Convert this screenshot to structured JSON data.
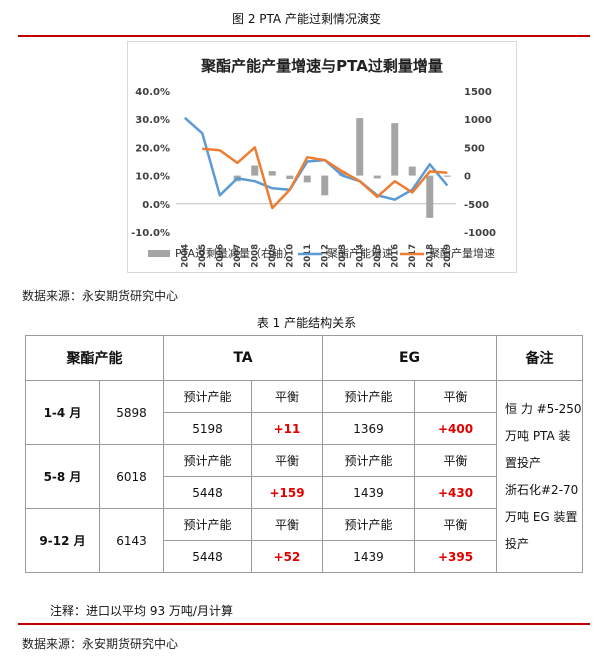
{
  "figure_caption": "图 2    PTA 产能过剩情况演变",
  "source_1": "数据来源：永安期货研究中心",
  "table_caption": "表 1    产能结构关系",
  "source_2": "数据来源：永安期货研究中心",
  "chart_data": {
    "type": "bar+line",
    "title": "聚酯产能产量增速与PTA过剩量增量",
    "categories": [
      "2004",
      "2005",
      "2006",
      "2007",
      "2008",
      "2009",
      "2010",
      "2011",
      "2012",
      "2013",
      "2014",
      "2015",
      "2016",
      "2017",
      "2018",
      "2019"
    ],
    "y_left": {
      "min": -10,
      "max": 40,
      "ticks": [
        "-10.0%",
        "0.0%",
        "10.0%",
        "20.0%",
        "30.0%",
        "40.0%"
      ],
      "tick_values": [
        -10,
        0,
        10,
        20,
        30,
        40
      ]
    },
    "y_right": {
      "min": -1000,
      "max": 1500,
      "ticks": [
        "-1000",
        "-500",
        "0",
        "500",
        "1000",
        "1500"
      ],
      "tick_values": [
        -1000,
        -500,
        0,
        500,
        1000,
        1500
      ]
    },
    "series": [
      {
        "name": "PTA过剩量减量（右轴）",
        "type": "bar",
        "axis": "right",
        "color": "#a5a5a5",
        "values": [
          null,
          null,
          null,
          -100,
          180,
          80,
          -60,
          -120,
          -350,
          80,
          1020,
          -50,
          930,
          160,
          -750,
          -20
        ]
      },
      {
        "name": "聚酯产能增速",
        "type": "line",
        "axis": "left",
        "color": "#5b9bd5",
        "values": [
          30.5,
          25.0,
          3.0,
          9.0,
          8.0,
          5.5,
          5.0,
          15.0,
          15.5,
          10.0,
          8.0,
          3.0,
          1.5,
          5.0,
          14.0,
          6.5
        ]
      },
      {
        "name": "聚酯产量增速",
        "type": "line",
        "axis": "left",
        "color": "#ed7d31",
        "values": [
          null,
          19.5,
          19.0,
          14.5,
          20.0,
          -1.5,
          5.0,
          16.5,
          15.5,
          11.5,
          8.0,
          2.5,
          8.0,
          4.0,
          11.5,
          11.0
        ]
      }
    ],
    "legend_position": "bottom"
  },
  "table": {
    "headers": {
      "capacity": "聚酯产能",
      "ta": "TA",
      "eg": "EG",
      "note": "备注"
    },
    "rows": [
      {
        "period": "1-4 月",
        "capacity": "5898",
        "ta_label": "预计产能",
        "ta_bal_label": "平衡",
        "ta_cap": "5198",
        "ta_bal": "+11",
        "eg_label": "预计产能",
        "eg_bal_label": "平衡",
        "eg_cap": "1369",
        "eg_bal": "+400"
      },
      {
        "period": "5-8 月",
        "capacity": "6018",
        "ta_label": "预计产能",
        "ta_bal_label": "平衡",
        "ta_cap": "5448",
        "ta_bal": "+159",
        "eg_label": "预计产能",
        "eg_bal_label": "平衡",
        "eg_cap": "1439",
        "eg_bal": "+430"
      },
      {
        "period": "9-12 月",
        "capacity": "6143",
        "ta_label": "预计产能",
        "ta_bal_label": "平衡",
        "ta_cap": "5448",
        "ta_bal": "+52",
        "eg_label": "预计产能",
        "eg_bal_label": "平衡",
        "eg_cap": "1439",
        "eg_bal": "+395"
      }
    ],
    "note_lines": [
      "恒 力 #5-250",
      "万吨  PTA  装",
      "置投产",
      "浙石化#2-70",
      "万吨 EG 装置",
      "投产"
    ],
    "footnote": "注释：进口以平均 93 万吨/月计算"
  }
}
